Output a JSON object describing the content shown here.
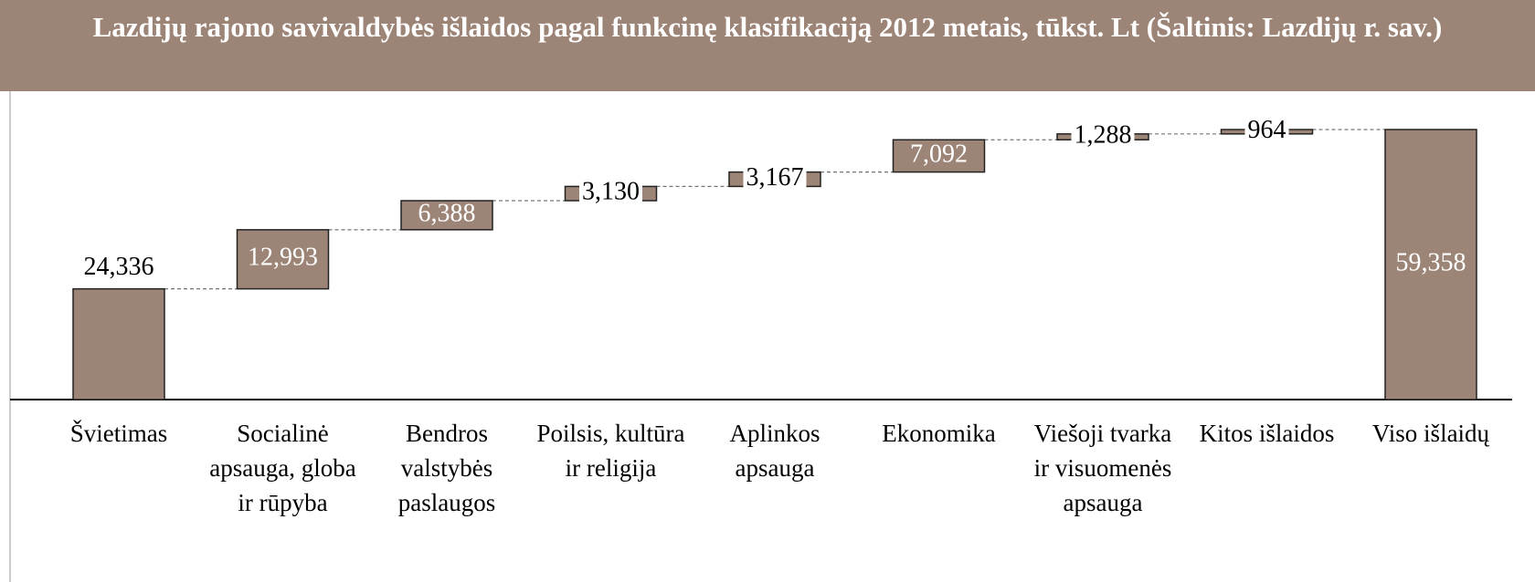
{
  "chart_data": {
    "type": "waterfall",
    "title": "Lazdijų rajono savivaldybės išlaidos pagal funkcinę klasifikaciją 2012 metais, tūkst. Lt (Šaltinis: Lazdijų r. sav.)",
    "categories": [
      "Švietimas",
      "Socialinė apsauga, globa ir rūpyba",
      "Bendros valstybės paslaugos",
      "Poilsis, kultūra ir religija",
      "Aplinkos apsauga",
      "Ekonomika",
      "Viešoji tvarka ir visuomenės apsauga",
      "Kitos išlaidos",
      "Viso išlaidų"
    ],
    "values": [
      24336,
      12993,
      6388,
      3130,
      3167,
      7092,
      1288,
      964,
      59358
    ],
    "value_labels": [
      "24,336",
      "12,993",
      "6,388",
      "3,130",
      "3,167",
      "7,092",
      "1,288",
      "964",
      "59,358"
    ],
    "last_is_total": true,
    "color": "#9c8577"
  }
}
